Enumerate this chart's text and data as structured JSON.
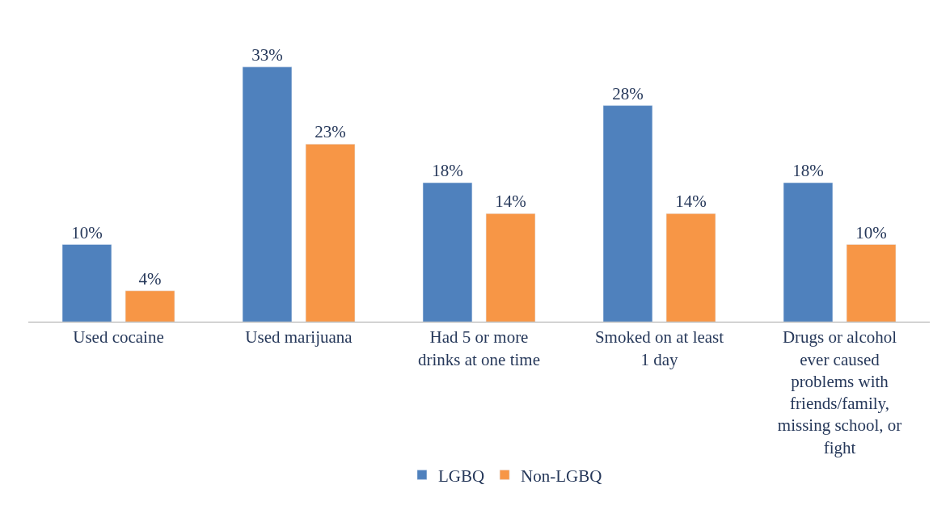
{
  "chart_data": {
    "type": "bar",
    "categories": [
      "Used cocaine",
      "Used marijuana",
      "Had 5 or more drinks at one time",
      "Smoked on at least 1 day",
      "Drugs or alcohol ever caused problems with friends/family, missing school, or fight"
    ],
    "series": [
      {
        "name": "LGBQ",
        "color": "#4f81bd",
        "values": [
          10,
          33,
          18,
          28,
          18
        ],
        "value_labels": [
          "10%",
          "33%",
          "18%",
          "28%",
          "18%"
        ]
      },
      {
        "name": "Non-LGBQ",
        "color": "#f79646",
        "values": [
          4,
          23,
          14,
          14,
          10
        ],
        "value_labels": [
          "4%",
          "23%",
          "14%",
          "14%",
          "10%"
        ]
      }
    ],
    "legend": "bottom"
  }
}
